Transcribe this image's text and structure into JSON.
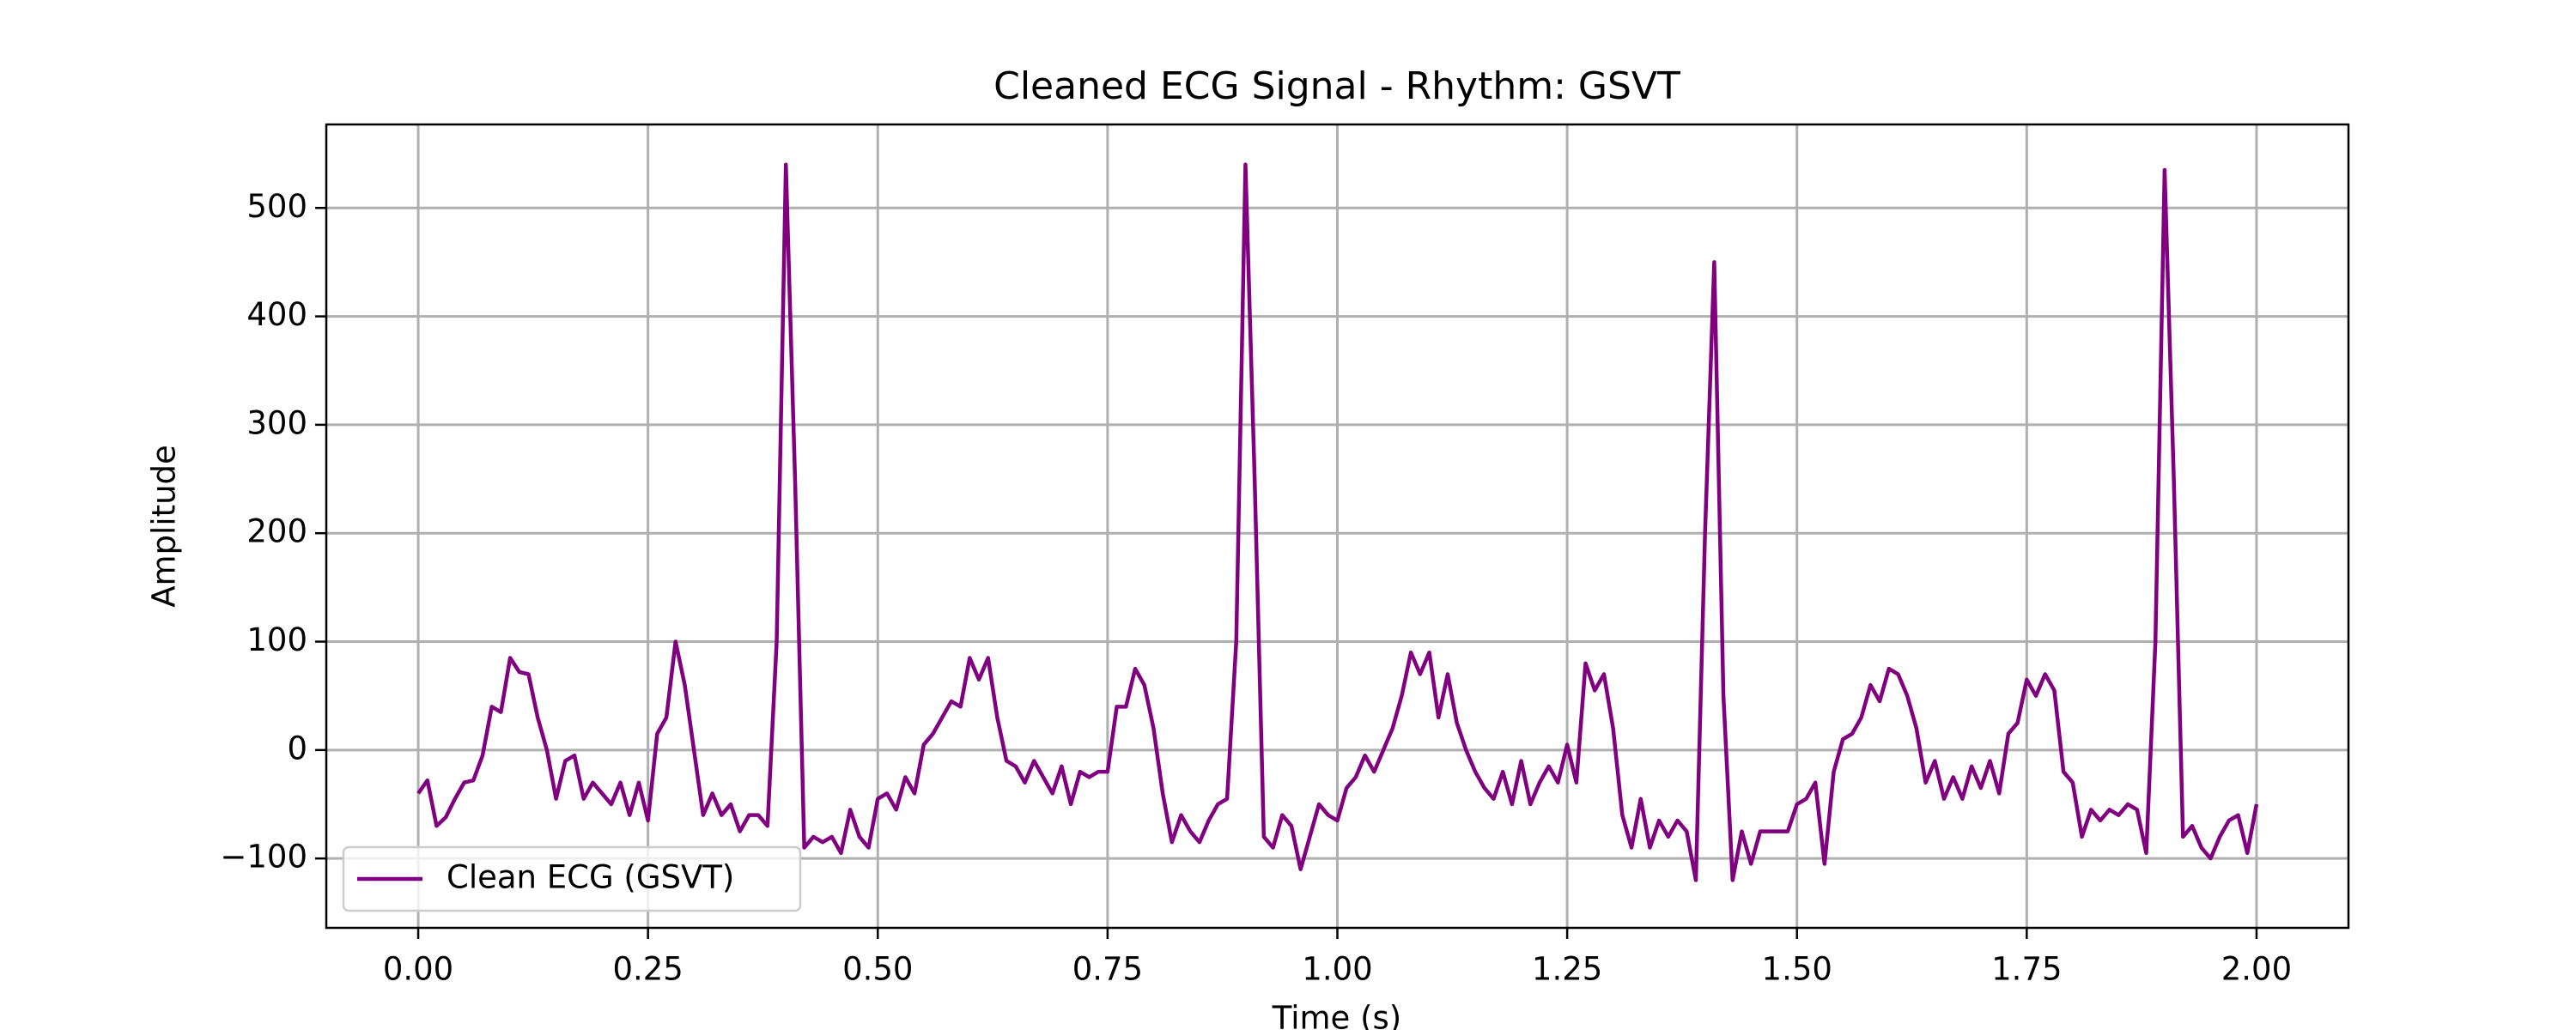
{
  "chart_data": {
    "type": "line",
    "title": "Cleaned ECG Signal - Rhythm: GSVT",
    "x_label": "Time (s)",
    "y_label": "Amplitude",
    "x": [
      0,
      0.01,
      0.02,
      0.03,
      0.04,
      0.05,
      0.06,
      0.07,
      0.08,
      0.09,
      0.1,
      0.11,
      0.12,
      0.13,
      0.14,
      0.15,
      0.16,
      0.17,
      0.18,
      0.19,
      0.2,
      0.21,
      0.22,
      0.23,
      0.24,
      0.25,
      0.26,
      0.27,
      0.28,
      0.29,
      0.3,
      0.31,
      0.32,
      0.33,
      0.34,
      0.35,
      0.36,
      0.37,
      0.38,
      0.39,
      0.4,
      0.41,
      0.42,
      0.43,
      0.44,
      0.45,
      0.46,
      0.47,
      0.48,
      0.49,
      0.5,
      0.51,
      0.52,
      0.53,
      0.54,
      0.55,
      0.56,
      0.57,
      0.58,
      0.59,
      0.6,
      0.61,
      0.62,
      0.63,
      0.64,
      0.65,
      0.66,
      0.67,
      0.68,
      0.69,
      0.7,
      0.71,
      0.72,
      0.73,
      0.74,
      0.75,
      0.76,
      0.77,
      0.78,
      0.79,
      0.8,
      0.81,
      0.82,
      0.83,
      0.84,
      0.85,
      0.86,
      0.87,
      0.88,
      0.89,
      0.9,
      0.91,
      0.92,
      0.93,
      0.94,
      0.95,
      0.96,
      0.97,
      0.98,
      0.99,
      1,
      1.01,
      1.02,
      1.03,
      1.04,
      1.05,
      1.06,
      1.07,
      1.08,
      1.09,
      1.1,
      1.11,
      1.12,
      1.13,
      1.14,
      1.15,
      1.16,
      1.17,
      1.18,
      1.19,
      1.2,
      1.21,
      1.22,
      1.23,
      1.24,
      1.25,
      1.26,
      1.27,
      1.28,
      1.29,
      1.3,
      1.31,
      1.32,
      1.33,
      1.34,
      1.35,
      1.36,
      1.37,
      1.38,
      1.39,
      1.4,
      1.41,
      1.42,
      1.43,
      1.44,
      1.45,
      1.46,
      1.47,
      1.48,
      1.49,
      1.5,
      1.51,
      1.52,
      1.53,
      1.54,
      1.55,
      1.56,
      1.57,
      1.58,
      1.59,
      1.6,
      1.61,
      1.62,
      1.63,
      1.64,
      1.65,
      1.66,
      1.67,
      1.68,
      1.69,
      1.7,
      1.71,
      1.72,
      1.73,
      1.74,
      1.75,
      1.76,
      1.77,
      1.78,
      1.79,
      1.8,
      1.81,
      1.82,
      1.83,
      1.84,
      1.85,
      1.86,
      1.87,
      1.88,
      1.89,
      1.9,
      1.91,
      1.92,
      1.93,
      1.94,
      1.95,
      1.96,
      1.97,
      1.98,
      1.99,
      2
    ],
    "series": [
      {
        "name": "Clean ECG (GSVT)",
        "color": "#800080",
        "values": [
          -40,
          -28,
          -70,
          -62,
          -45,
          -30,
          -28,
          -5,
          40,
          35,
          85,
          72,
          70,
          30,
          0,
          -45,
          -10,
          -5,
          -45,
          -30,
          -40,
          -50,
          -30,
          -60,
          -30,
          -65,
          15,
          30,
          100,
          60,
          0,
          -60,
          -40,
          -60,
          -50,
          -75,
          -60,
          -60,
          -70,
          100,
          540,
          250,
          -90,
          -80,
          -85,
          -80,
          -95,
          -55,
          -80,
          -90,
          -45,
          -40,
          -55,
          -25,
          -40,
          5,
          15,
          30,
          45,
          40,
          85,
          65,
          85,
          30,
          -10,
          -15,
          -30,
          -10,
          -25,
          -40,
          -15,
          -50,
          -20,
          -25,
          -20,
          -20,
          40,
          40,
          75,
          60,
          20,
          -40,
          -85,
          -60,
          -75,
          -85,
          -65,
          -50,
          -45,
          100,
          540,
          250,
          -80,
          -90,
          -60,
          -70,
          -110,
          -80,
          -50,
          -60,
          -65,
          -35,
          -25,
          -5,
          -20,
          0,
          20,
          50,
          90,
          70,
          90,
          30,
          70,
          25,
          0,
          -20,
          -35,
          -45,
          -20,
          -50,
          -10,
          -50,
          -30,
          -15,
          -30,
          5,
          -30,
          80,
          55,
          70,
          20,
          -60,
          -90,
          -45,
          -90,
          -65,
          -80,
          -65,
          -75,
          -120,
          200,
          450,
          50,
          -120,
          -75,
          -105,
          -75,
          -75,
          -75,
          -75,
          -50,
          -45,
          -30,
          -105,
          -20,
          10,
          15,
          30,
          60,
          45,
          75,
          70,
          50,
          20,
          -30,
          -10,
          -45,
          -25,
          -45,
          -15,
          -35,
          -10,
          -40,
          15,
          25,
          65,
          50,
          70,
          55,
          -20,
          -30,
          -80,
          -55,
          -65,
          -55,
          -60,
          -50,
          -55,
          -95,
          100,
          535,
          250,
          -80,
          -70,
          -90,
          -100,
          -80,
          -65,
          -60,
          -95,
          -50
        ]
      }
    ],
    "xlim": [
      -0.1,
      2.1
    ],
    "ylim": [
      -164,
      577
    ],
    "xticks": [
      {
        "value": 0,
        "label": "0.00"
      },
      {
        "value": 0.25,
        "label": "0.25"
      },
      {
        "value": 0.5,
        "label": "0.50"
      },
      {
        "value": 0.75,
        "label": "0.75"
      },
      {
        "value": 1,
        "label": "1.00"
      },
      {
        "value": 1.25,
        "label": "1.25"
      },
      {
        "value": 1.5,
        "label": "1.50"
      },
      {
        "value": 1.75,
        "label": "1.75"
      },
      {
        "value": 2,
        "label": "2.00"
      }
    ],
    "yticks": [
      {
        "value": -100,
        "label": "−100"
      },
      0,
      100,
      200,
      300,
      400,
      500
    ],
    "grid": true,
    "legend": "lower left"
  }
}
